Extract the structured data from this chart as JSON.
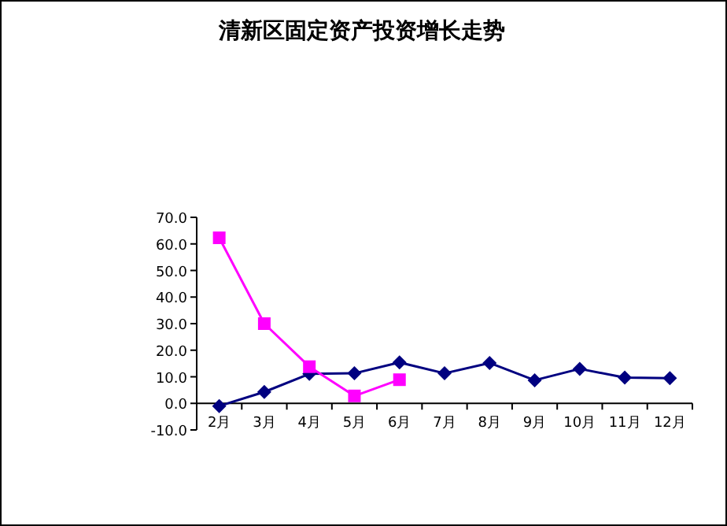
{
  "chart_data": {
    "type": "line",
    "title": "清新区固定资产投资增长走势",
    "categories": [
      "2月",
      "3月",
      "4月",
      "5月",
      "6月",
      "7月",
      "8月",
      "9月",
      "10月",
      "11月",
      "12月"
    ],
    "series": [
      {
        "color": "#000080",
        "marker": "diamond",
        "values": [
          -1.0,
          4.3,
          11.1,
          11.3,
          15.4,
          11.3,
          15.2,
          8.7,
          13.0,
          9.7,
          9.5
        ]
      },
      {
        "color": "#ff00ff",
        "marker": "square",
        "values": [
          62.3,
          30.0,
          13.8,
          2.8,
          8.9,
          null,
          null,
          null,
          null,
          null,
          null
        ]
      }
    ],
    "ylim": [
      -10,
      70
    ],
    "yticks": [
      {
        "value": -10,
        "label": "-10.0"
      },
      {
        "value": 0,
        "label": "0.0"
      },
      {
        "value": 10,
        "label": "10.0"
      },
      {
        "value": 20,
        "label": "20.0"
      },
      {
        "value": 30,
        "label": "30.0"
      },
      {
        "value": 40,
        "label": "40.0"
      },
      {
        "value": 50,
        "label": "50.0"
      },
      {
        "value": 60,
        "label": "60.0"
      },
      {
        "value": 70,
        "label": "70.0"
      }
    ],
    "grid": false
  }
}
